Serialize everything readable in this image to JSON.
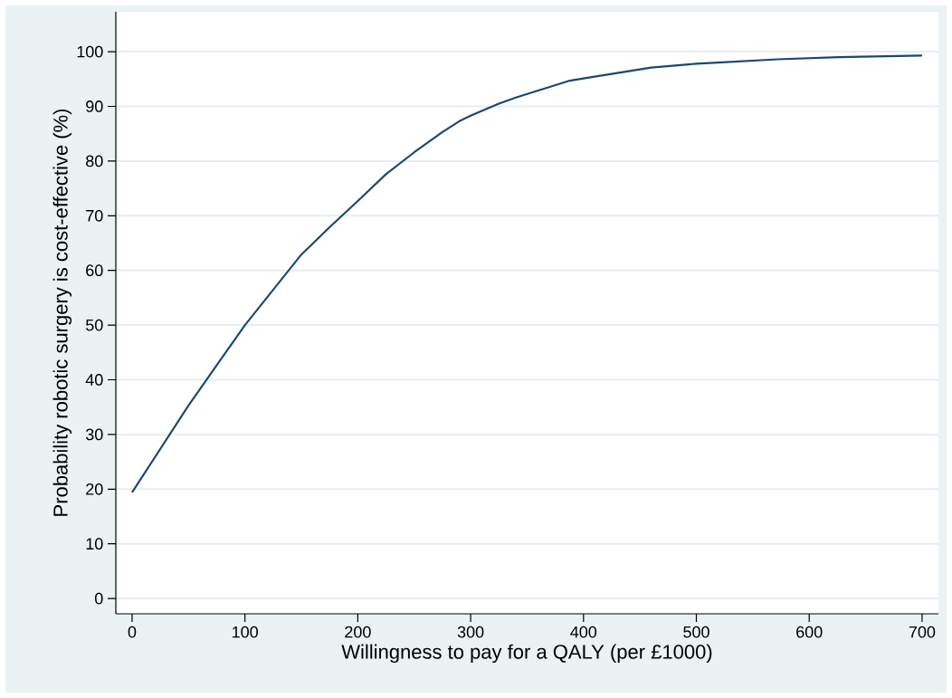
{
  "chart_data": {
    "type": "line",
    "xlabel": "Willingness to pay for a QALY (per £1000)",
    "ylabel": "Probability robotic surgery is cost-effective (%)",
    "x": [
      0,
      50,
      100,
      150,
      175,
      200,
      225,
      250,
      275,
      290,
      300,
      325,
      340,
      388,
      400,
      460,
      500,
      519,
      572,
      626,
      700
    ],
    "series": [
      {
        "color": "#1a476f",
        "values": [
          19.4,
          35.3,
          50.0,
          62.9,
          67.9,
          72.7,
          77.6,
          81.6,
          85.3,
          87.3,
          88.3,
          90.5,
          91.6,
          94.7,
          95.1,
          97.1,
          97.8,
          98.0,
          98.6,
          99.0,
          99.3
        ]
      }
    ],
    "xlim": [
      -14.4,
      714.5
    ],
    "ylim": [
      -2.8,
      107.3
    ],
    "xticks": [
      0,
      100,
      200,
      300,
      400,
      500,
      600,
      700
    ],
    "yticks": [
      0,
      10,
      20,
      30,
      40,
      50,
      60,
      70,
      80,
      90,
      100
    ],
    "grid": "y",
    "marker": "none",
    "line_style": "solid"
  }
}
